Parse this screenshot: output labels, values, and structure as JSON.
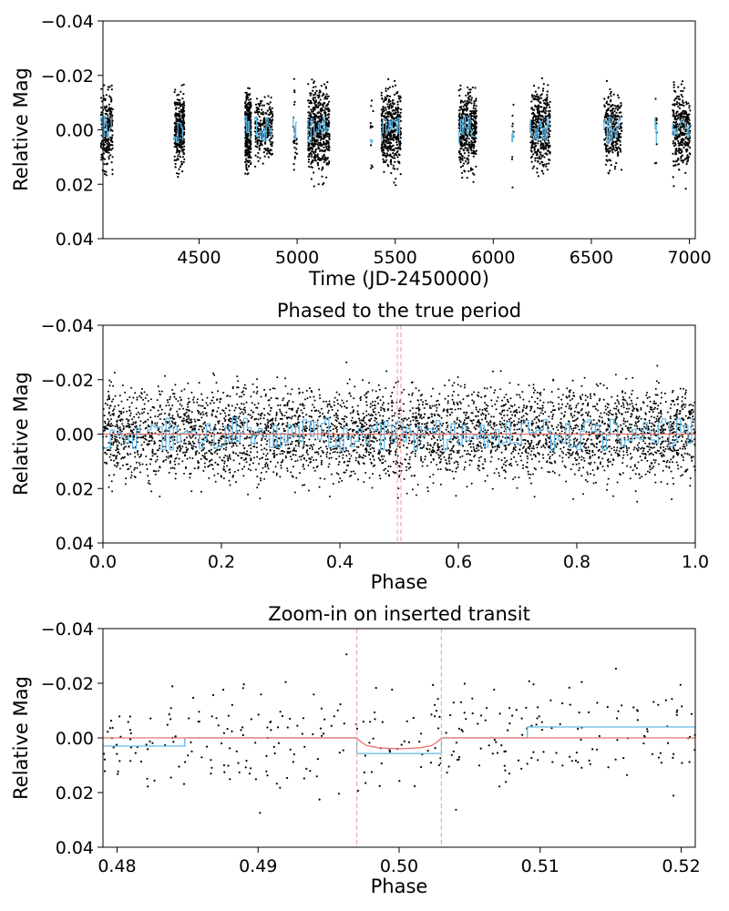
{
  "chart_data": [
    {
      "type": "scatter",
      "title": "",
      "xlabel": "Time (JD-2450000)",
      "ylabel": "Relative Mag",
      "xlim": [
        4010,
        7030
      ],
      "ylim": [
        0.04,
        -0.04
      ],
      "xticks": [
        4500,
        5000,
        5500,
        6000,
        6500,
        7000
      ],
      "xtick_labels": [
        "4500",
        "5000",
        "5500",
        "6000",
        "6500",
        "7000"
      ],
      "yticks": [
        -0.04,
        -0.02,
        0.0,
        0.02,
        0.04
      ],
      "ytick_labels": [
        "−0.04",
        "−0.02",
        "0.00",
        "0.02",
        "0.04"
      ],
      "series": [
        {
          "name": "observations",
          "style": "black points",
          "color": "#000000",
          "clusters": [
            {
              "center": 4030,
              "width": 60,
              "count": 220,
              "spread": 0.012
            },
            {
              "center": 4400,
              "width": 50,
              "count": 330,
              "spread": 0.011
            },
            {
              "center": 4750,
              "width": 30,
              "count": 330,
              "spread": 0.011
            },
            {
              "center": 4830,
              "width": 90,
              "count": 250,
              "spread": 0.01
            },
            {
              "center": 4990,
              "width": 20,
              "count": 30,
              "spread": 0.012
            },
            {
              "center": 5110,
              "width": 110,
              "count": 560,
              "spread": 0.012
            },
            {
              "center": 5380,
              "width": 15,
              "count": 12,
              "spread": 0.015
            },
            {
              "center": 5480,
              "width": 100,
              "count": 460,
              "spread": 0.012
            },
            {
              "center": 5870,
              "width": 90,
              "count": 420,
              "spread": 0.012
            },
            {
              "center": 6100,
              "width": 10,
              "count": 10,
              "spread": 0.012
            },
            {
              "center": 6240,
              "width": 100,
              "count": 420,
              "spread": 0.012
            },
            {
              "center": 6610,
              "width": 90,
              "count": 280,
              "spread": 0.011
            },
            {
              "center": 6830,
              "width": 10,
              "count": 10,
              "spread": 0.01
            },
            {
              "center": 6960,
              "width": 90,
              "count": 330,
              "spread": 0.012
            }
          ]
        },
        {
          "name": "binned model",
          "style": "blue step",
          "color": "#5fb9e6"
        }
      ]
    },
    {
      "type": "scatter",
      "title": "Phased to the true period",
      "xlabel": "Phase",
      "ylabel": "Relative Mag",
      "xlim": [
        0.0,
        1.0
      ],
      "ylim": [
        0.04,
        -0.04
      ],
      "xticks": [
        0.0,
        0.2,
        0.4,
        0.6,
        0.8,
        1.0
      ],
      "xtick_labels": [
        "0.0",
        "0.2",
        "0.4",
        "0.6",
        "0.8",
        "1.0"
      ],
      "yticks": [
        -0.04,
        -0.02,
        0.0,
        0.02,
        0.04
      ],
      "ytick_labels": [
        "−0.04",
        "−0.02",
        "0.00",
        "0.02",
        "0.04"
      ],
      "vlines": [
        0.497,
        0.503
      ],
      "series": [
        {
          "name": "phased observations",
          "style": "black points",
          "color": "#000000",
          "count": 4200,
          "spread": 0.013
        },
        {
          "name": "binned model",
          "style": "blue step",
          "color": "#5fb9e6"
        },
        {
          "name": "transit model",
          "style": "red line",
          "color": "#e8736c"
        }
      ]
    },
    {
      "type": "scatter",
      "title": "Zoom-in on inserted transit",
      "xlabel": "Phase",
      "ylabel": "Relative Mag",
      "xlim": [
        0.479,
        0.521
      ],
      "ylim": [
        0.04,
        -0.04
      ],
      "xticks": [
        0.48,
        0.49,
        0.5,
        0.51,
        0.52
      ],
      "xtick_labels": [
        "0.48",
        "0.49",
        "0.50",
        "0.51",
        "0.52"
      ],
      "yticks": [
        -0.04,
        -0.02,
        0.0,
        0.02,
        0.04
      ],
      "ytick_labels": [
        "−0.04",
        "−0.02",
        "0.00",
        "0.02",
        "0.04"
      ],
      "vlines": [
        0.497,
        0.503
      ],
      "series": [
        {
          "name": "phased observations",
          "style": "black points",
          "color": "#000000",
          "count": 330,
          "spread": 0.014
        },
        {
          "name": "binned model",
          "style": "blue step",
          "color": "#5fb9e6",
          "x": [
            0.479,
            0.4848,
            0.4848,
            0.497,
            0.497,
            0.503,
            0.503,
            0.5091,
            0.5091,
            0.521
          ],
          "y": [
            0.003,
            0.003,
            0.0,
            0.0,
            0.0057,
            0.0057,
            0.0,
            0.0,
            -0.004,
            -0.004
          ]
        },
        {
          "name": "transit model",
          "style": "red line",
          "color": "#e8736c",
          "x": [
            0.479,
            0.497,
            0.4973,
            0.4977,
            0.4985,
            0.5,
            0.5015,
            0.5023,
            0.5027,
            0.503,
            0.521
          ],
          "y": [
            0.0,
            0.0,
            0.0015,
            0.0028,
            0.0036,
            0.004,
            0.0036,
            0.0028,
            0.0015,
            0.0,
            0.0
          ]
        }
      ]
    }
  ]
}
